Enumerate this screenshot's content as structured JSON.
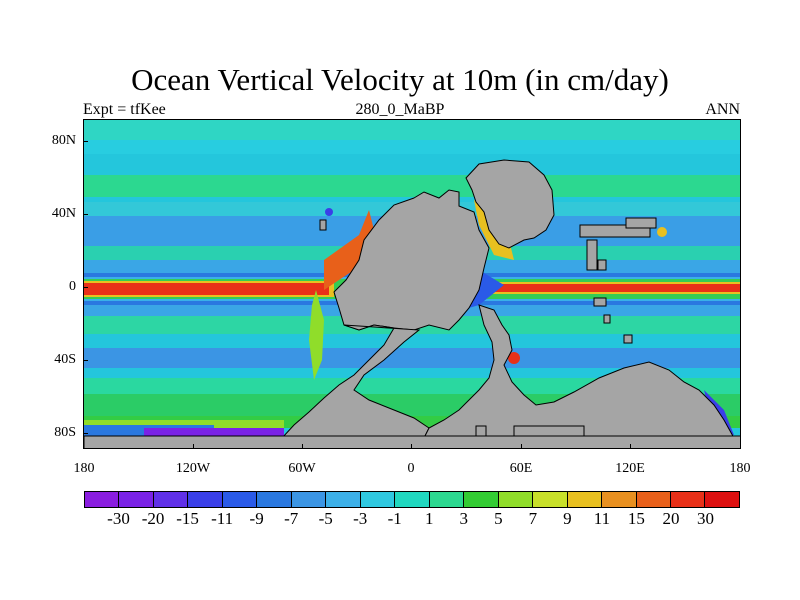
{
  "title": "Ocean Vertical Velocity at 10m (in cm/day)",
  "subtitle_left": "Expt = tfKee",
  "subtitle_center": "280_0_MaBP",
  "subtitle_right": "ANN",
  "y_axis_labels": [
    "80N",
    "40N",
    "0",
    "40S",
    "80S"
  ],
  "x_axis_labels": [
    "180",
    "120W",
    "60W",
    "0",
    "60E",
    "120E",
    "180"
  ],
  "colorbar": {
    "labels": [
      "-30",
      "-20",
      "-15",
      "-11",
      "-9",
      "-7",
      "-5",
      "-3",
      "-1",
      "1",
      "3",
      "5",
      "7",
      "9",
      "11",
      "15",
      "20",
      "30"
    ],
    "colors": [
      "#8a1de0",
      "#7a22e6",
      "#6030e8",
      "#3a3fe8",
      "#2a5ae8",
      "#2a78e0",
      "#3b95e4",
      "#3cb0e8",
      "#2fc8e0",
      "#20d8c0",
      "#2cd890",
      "#33cc33",
      "#90dd2a",
      "#c8e02a",
      "#e8c020",
      "#e89020",
      "#e8601a",
      "#e83018",
      "#dd1010"
    ]
  },
  "colors": {
    "land": "#a5a5a5",
    "ocean_base": "#22c8e0",
    "equatorial_upwelling": "#e01a12"
  }
}
